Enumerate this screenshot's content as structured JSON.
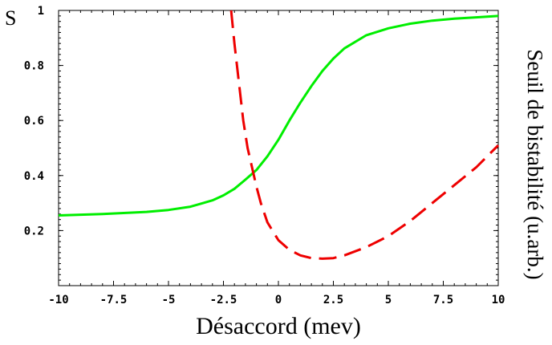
{
  "chart_data": {
    "type": "line",
    "title": "",
    "xlabel": "Désaccord (mev)",
    "ylabel": "S",
    "y2label": "Seuil de bistabilité (u.arb.)",
    "xlim": [
      -10,
      10
    ],
    "ylim": [
      0,
      1
    ],
    "x_ticks": [
      "-10",
      "-7.5",
      "-5",
      "-2.5",
      "0",
      "2.5",
      "5",
      "7.5",
      "10"
    ],
    "y_ticks": [
      "0.2",
      "0.4",
      "0.6",
      "0.8",
      "1"
    ],
    "grid": false,
    "series": [
      {
        "style": "solid",
        "color": "#00ee00",
        "x": [
          -10,
          -8,
          -6,
          -5,
          -4,
          -3,
          -2.5,
          -2,
          -1.5,
          -1,
          -0.5,
          0,
          0.5,
          1,
          1.5,
          2,
          2.5,
          3,
          4,
          5,
          6,
          7,
          8,
          9,
          10
        ],
        "y": [
          0.255,
          0.26,
          0.268,
          0.275,
          0.287,
          0.31,
          0.328,
          0.352,
          0.385,
          0.42,
          0.47,
          0.53,
          0.6,
          0.665,
          0.725,
          0.78,
          0.825,
          0.862,
          0.91,
          0.935,
          0.952,
          0.963,
          0.97,
          0.975,
          0.98
        ]
      },
      {
        "style": "dashed",
        "color": "#ee0000",
        "x": [
          -2.15,
          -2.0,
          -1.8,
          -1.6,
          -1.4,
          -1.2,
          -1.0,
          -0.8,
          -0.5,
          0,
          0.5,
          1,
          1.5,
          2,
          2.5,
          3,
          4,
          5,
          6,
          7,
          8,
          9,
          10
        ],
        "y": [
          1.0,
          0.88,
          0.74,
          0.6,
          0.5,
          0.43,
          0.36,
          0.3,
          0.23,
          0.165,
          0.13,
          0.11,
          0.1,
          0.098,
          0.1,
          0.11,
          0.14,
          0.18,
          0.235,
          0.3,
          0.365,
          0.43,
          0.51
        ]
      }
    ]
  }
}
